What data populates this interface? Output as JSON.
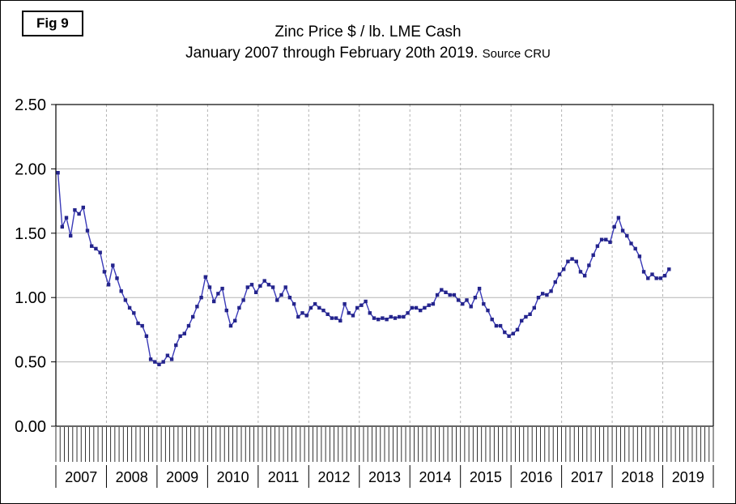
{
  "fig_label": "Fig 9",
  "title": {
    "line1": "Zinc Price $ / lb. LME Cash",
    "line2": "January 2007 through February 20th 2019.",
    "source": "Source CRU"
  },
  "chart_data": {
    "type": "line",
    "title": "Zinc Price $ / lb. LME Cash",
    "subtitle": "January 2007 through February 20th 2019. Source CRU",
    "xlabel": "",
    "ylabel": "",
    "ylim": [
      0.0,
      2.5
    ],
    "yticks": [
      0.0,
      0.5,
      1.0,
      1.5,
      2.0,
      2.5
    ],
    "grid": true,
    "legend": "none",
    "x_frequency": "monthly",
    "x_start": "2007-01",
    "x_end": "2019-02",
    "years": [
      2007,
      2008,
      2009,
      2010,
      2011,
      2012,
      2013,
      2014,
      2015,
      2016,
      2017,
      2018,
      2019
    ],
    "series": [
      {
        "name": "Zinc LME Cash ($/lb)",
        "color": "#3a3ab8",
        "marker": "square",
        "marker_color": "#24248c",
        "values": [
          1.97,
          1.55,
          1.62,
          1.48,
          1.68,
          1.65,
          1.7,
          1.52,
          1.4,
          1.38,
          1.35,
          1.2,
          1.1,
          1.25,
          1.15,
          1.05,
          0.98,
          0.92,
          0.88,
          0.8,
          0.78,
          0.7,
          0.52,
          0.5,
          0.48,
          0.5,
          0.55,
          0.52,
          0.63,
          0.7,
          0.72,
          0.78,
          0.85,
          0.93,
          1.0,
          1.16,
          1.08,
          0.97,
          1.03,
          1.07,
          0.9,
          0.78,
          0.82,
          0.92,
          0.98,
          1.08,
          1.1,
          1.04,
          1.09,
          1.13,
          1.1,
          1.08,
          0.98,
          1.02,
          1.08,
          1.0,
          0.95,
          0.85,
          0.88,
          0.86,
          0.92,
          0.95,
          0.92,
          0.9,
          0.87,
          0.84,
          0.84,
          0.82,
          0.95,
          0.88,
          0.86,
          0.92,
          0.94,
          0.97,
          0.88,
          0.84,
          0.83,
          0.84,
          0.83,
          0.85,
          0.84,
          0.85,
          0.85,
          0.88,
          0.92,
          0.92,
          0.9,
          0.92,
          0.94,
          0.95,
          1.02,
          1.06,
          1.04,
          1.02,
          1.02,
          0.98,
          0.95,
          0.98,
          0.93,
          1.0,
          1.07,
          0.95,
          0.9,
          0.83,
          0.78,
          0.78,
          0.73,
          0.7,
          0.72,
          0.75,
          0.82,
          0.85,
          0.87,
          0.92,
          1.0,
          1.03,
          1.02,
          1.05,
          1.12,
          1.18,
          1.22,
          1.28,
          1.3,
          1.28,
          1.2,
          1.17,
          1.25,
          1.33,
          1.4,
          1.45,
          1.45,
          1.43,
          1.55,
          1.62,
          1.52,
          1.48,
          1.42,
          1.38,
          1.32,
          1.2,
          1.15,
          1.18,
          1.15,
          1.15,
          1.17,
          1.22
        ]
      }
    ]
  }
}
